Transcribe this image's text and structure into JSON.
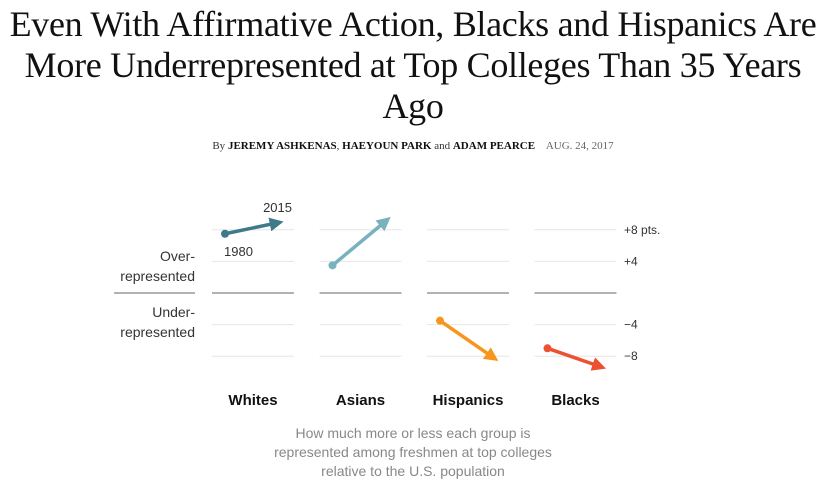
{
  "article": {
    "headline": "Even With Affirmative Action, Blacks and Hispanics Are More Underrepresented at Top Colleges Than 35 Years Ago",
    "byline_prefix": "By",
    "author1": "JEREMY ASHKENAS",
    "author2": "HAEYOUN PARK",
    "byline_and": "and",
    "author3": "ADAM PEARCE",
    "date": "AUG. 24, 2017"
  },
  "chart_data": {
    "type": "line",
    "title": "",
    "caption": "How much more or less each group is represented among freshmen at top colleges relative to the U.S. population",
    "ylabel_over": "Over-represented",
    "ylabel_under": "Under-represented",
    "ylabel_over_lines": [
      "Over-",
      "represented"
    ],
    "ylabel_under_lines": [
      "Under-",
      "represented"
    ],
    "ylim": [
      -10,
      10
    ],
    "yticks": [
      {
        "value": 8,
        "label": "+8 pts."
      },
      {
        "value": 4,
        "label": "+4"
      },
      {
        "value": 0,
        "label": ""
      },
      {
        "value": -4,
        "label": "−4"
      },
      {
        "value": -8,
        "label": "−8"
      }
    ],
    "x": [
      1980,
      2015
    ],
    "annotations": {
      "start_label": "1980",
      "end_label": "2015"
    },
    "series": [
      {
        "name": "Whites",
        "values": [
          7.5,
          9
        ],
        "color": "#3e7a8a"
      },
      {
        "name": "Asians",
        "values": [
          3.5,
          9.5
        ],
        "color": "#79b1bf"
      },
      {
        "name": "Hispanics",
        "values": [
          -3.5,
          -8.5
        ],
        "color": "#f7951d"
      },
      {
        "name": "Blacks",
        "values": [
          -7,
          -9.5
        ],
        "color": "#ee5032"
      }
    ],
    "grid": true,
    "legend": "none"
  }
}
